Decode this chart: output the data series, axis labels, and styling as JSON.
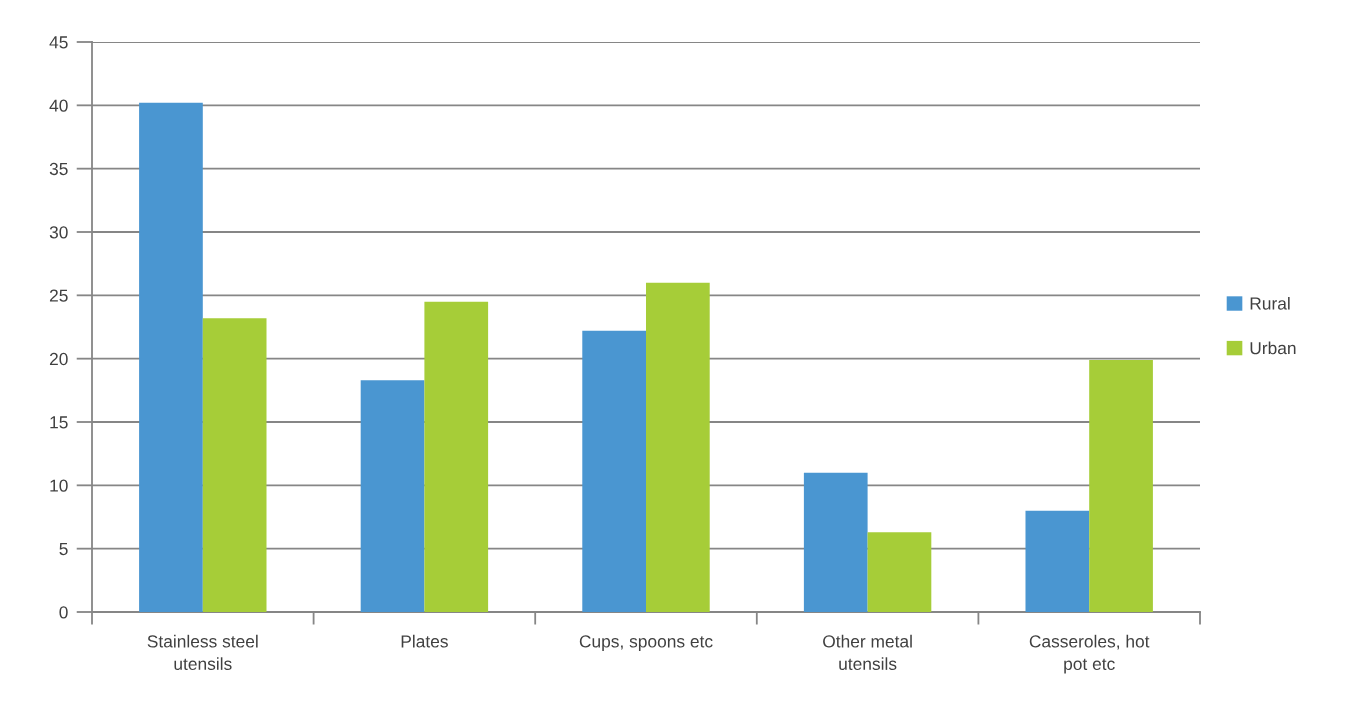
{
  "chart_data": {
    "type": "bar",
    "categories": [
      "Stainless steel utensils",
      "Plates",
      "Cups, spoons etc",
      "Other metal utensils",
      "Casseroles, hot pot etc"
    ],
    "series": [
      {
        "name": "Rural",
        "color": "#4a96d1",
        "values": [
          40.2,
          18.3,
          22.2,
          11.0,
          8.0
        ]
      },
      {
        "name": "Urban",
        "color": "#a6cd38",
        "values": [
          23.2,
          24.5,
          26.0,
          6.3,
          19.9
        ]
      }
    ],
    "ylim": [
      0,
      45
    ],
    "yticks": [
      0,
      5,
      10,
      15,
      20,
      25,
      30,
      35,
      40,
      45
    ],
    "grid": "y",
    "legend": "right"
  }
}
